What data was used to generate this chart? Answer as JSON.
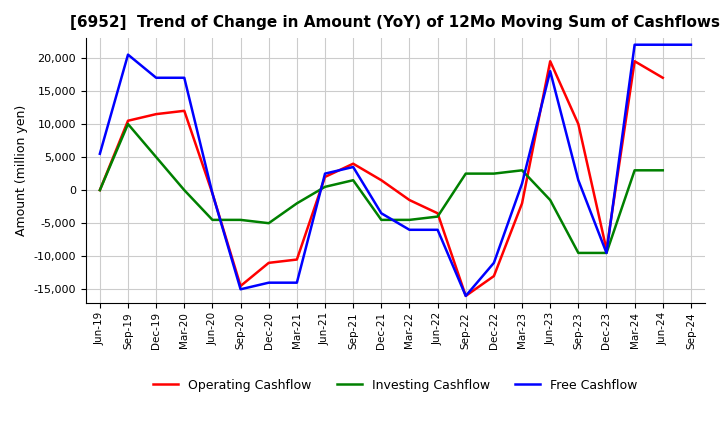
{
  "title": "[6952]  Trend of Change in Amount (YoY) of 12Mo Moving Sum of Cashflows",
  "ylabel": "Amount (million yen)",
  "xlabels": [
    "Jun-19",
    "Sep-19",
    "Dec-19",
    "Mar-20",
    "Jun-20",
    "Sep-20",
    "Dec-20",
    "Mar-21",
    "Jun-21",
    "Sep-21",
    "Dec-21",
    "Mar-22",
    "Jun-22",
    "Sep-22",
    "Dec-22",
    "Mar-23",
    "Jun-23",
    "Sep-23",
    "Dec-23",
    "Mar-24",
    "Jun-24",
    "Sep-24"
  ],
  "operating_cashflow": [
    0,
    10500,
    11500,
    12000,
    -500,
    -14500,
    -11000,
    -10500,
    2000,
    4000,
    1500,
    -1500,
    -3500,
    -16000,
    -13000,
    -2000,
    19500,
    10000,
    -9000,
    19500,
    17000,
    null
  ],
  "investing_cashflow": [
    0,
    10000,
    5000,
    0,
    -4500,
    -4500,
    -5000,
    -2000,
    500,
    1500,
    -4500,
    -4500,
    -4000,
    2500,
    2500,
    3000,
    -1500,
    -9500,
    -9500,
    3000,
    3000,
    null
  ],
  "free_cashflow": [
    5500,
    20500,
    17000,
    17000,
    -500,
    -15000,
    -14000,
    -14000,
    2500,
    3500,
    -3500,
    -6000,
    -6000,
    -16000,
    -11000,
    1000,
    18000,
    1500,
    -9500,
    22000,
    22000,
    22000
  ],
  "line_colors": {
    "operating": "#ff0000",
    "investing": "#008000",
    "free": "#0000ff"
  },
  "ylim": [
    -17000,
    23000
  ],
  "yticks": [
    -15000,
    -10000,
    -5000,
    0,
    5000,
    10000,
    15000,
    20000
  ],
  "grid_color": "#cccccc",
  "background_color": "#ffffff"
}
